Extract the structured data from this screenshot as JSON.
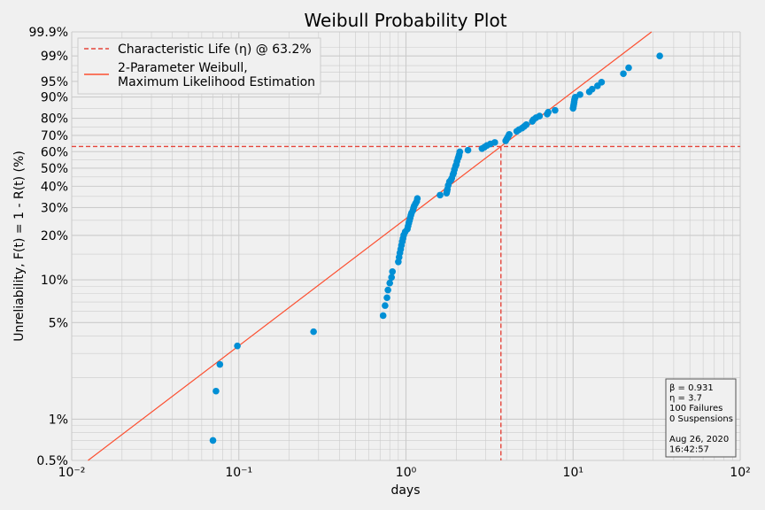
{
  "chart_data": {
    "type": "scatter",
    "title": "Weibull Probability Plot",
    "xlabel": "days",
    "ylabel": "Unreliability, F(t) = 1 - R(t) (%)",
    "x_scale": "log",
    "y_scale": "weibull",
    "xlim": [
      0.01,
      100
    ],
    "ylim_percent": [
      0.5,
      99.9
    ],
    "grid": true,
    "legend_position": "top-left",
    "x_ticks": [
      {
        "value": 0.01,
        "label": "10⁻²"
      },
      {
        "value": 0.1,
        "label": "10⁻¹"
      },
      {
        "value": 1,
        "label": "10⁰"
      },
      {
        "value": 10,
        "label": "10¹"
      },
      {
        "value": 100,
        "label": "10²"
      }
    ],
    "y_ticks": [
      {
        "value": 0.5,
        "label": "0.5%"
      },
      {
        "value": 1,
        "label": "1%"
      },
      {
        "value": 5,
        "label": "5%"
      },
      {
        "value": 10,
        "label": "10%"
      },
      {
        "value": 20,
        "label": "20%"
      },
      {
        "value": 30,
        "label": "30%"
      },
      {
        "value": 40,
        "label": "40%"
      },
      {
        "value": 50,
        "label": "50%"
      },
      {
        "value": 60,
        "label": "60%"
      },
      {
        "value": 70,
        "label": "70%"
      },
      {
        "value": 80,
        "label": "80%"
      },
      {
        "value": 90,
        "label": "90%"
      },
      {
        "value": 95,
        "label": "95%"
      },
      {
        "value": 99,
        "label": "99%"
      },
      {
        "value": 99.9,
        "label": "99.9%"
      }
    ],
    "legend": [
      {
        "label": "Characteristic Life (η) @ 63.2%",
        "style": "dashed"
      },
      {
        "label": "2-Parameter Weibull,\nMaximum Likelihood Estimation",
        "style": "solid"
      }
    ],
    "fit": {
      "beta": 0.931,
      "eta": 3.7
    },
    "characteristic_life_percent": 63.2,
    "annotation": [
      "β = 0.931",
      "η = 3.7",
      "100 Failures",
      "0 Suspensions",
      "",
      "Aug 26, 2020",
      "16:42:57"
    ],
    "colors": {
      "points": "#008fd5",
      "fit_line": "#fc4f30",
      "ref_line": "#e5453a",
      "background": "#f0f0f0",
      "grid": "#cbcbcb"
    },
    "series": [
      {
        "x": [
          0.07,
          0.073,
          0.077,
          0.098,
          0.28,
          0.73,
          0.75,
          0.77,
          0.78,
          0.8,
          0.82,
          0.83,
          0.9,
          0.91,
          0.92,
          0.93,
          0.94,
          0.95,
          0.96,
          0.97,
          0.99,
          1.02,
          1.03,
          1.04,
          1.05,
          1.06,
          1.07,
          1.08,
          1.1,
          1.11,
          1.12,
          1.14,
          1.16,
          1.17,
          1.6,
          1.75,
          1.76,
          1.77,
          1.79,
          1.82,
          1.86,
          1.88,
          1.91,
          1.93,
          1.95,
          1.98,
          2.0,
          2.02,
          2.05,
          2.07,
          2.08,
          2.1,
          2.35,
          2.85,
          2.95,
          3.05,
          3.2,
          3.4,
          3.95,
          4.0,
          4.05,
          4.1,
          4.15,
          4.6,
          4.75,
          4.95,
          5.1,
          5.25,
          5.7,
          5.8,
          6.0,
          6.3,
          7.0,
          7.1,
          7.8,
          10.0,
          10.05,
          10.1,
          10.15,
          10.2,
          10.3,
          11.0,
          12.5,
          13.0,
          14.0,
          14.8,
          20.0,
          21.5,
          33.0
        ],
        "y": [
          0.7,
          1.6,
          2.5,
          3.4,
          4.3,
          5.6,
          6.6,
          7.5,
          8.5,
          9.5,
          10.4,
          11.4,
          13.3,
          14.3,
          15.3,
          16.2,
          17.2,
          18.2,
          19.1,
          20.1,
          21.1,
          22.0,
          23.0,
          24.0,
          24.9,
          25.9,
          26.9,
          27.8,
          28.8,
          29.8,
          30.7,
          31.7,
          32.7,
          34.0,
          35.6,
          36.6,
          37.5,
          38.5,
          40.5,
          42.4,
          43.4,
          44.3,
          46.3,
          47.3,
          49.2,
          51.2,
          52.1,
          54.1,
          56.0,
          57.0,
          58.0,
          59.9,
          60.9,
          61.9,
          62.8,
          63.8,
          64.8,
          65.7,
          66.7,
          67.7,
          68.6,
          69.6,
          70.6,
          72.5,
          73.5,
          74.4,
          75.4,
          76.4,
          78.3,
          79.3,
          80.3,
          81.2,
          82.2,
          83.2,
          84.1,
          85.1,
          86.1,
          87.0,
          88.0,
          89.0,
          89.9,
          90.9,
          91.9,
          92.8,
          93.8,
          94.8,
          96.7,
          97.7,
          99.0
        ]
      }
    ]
  }
}
